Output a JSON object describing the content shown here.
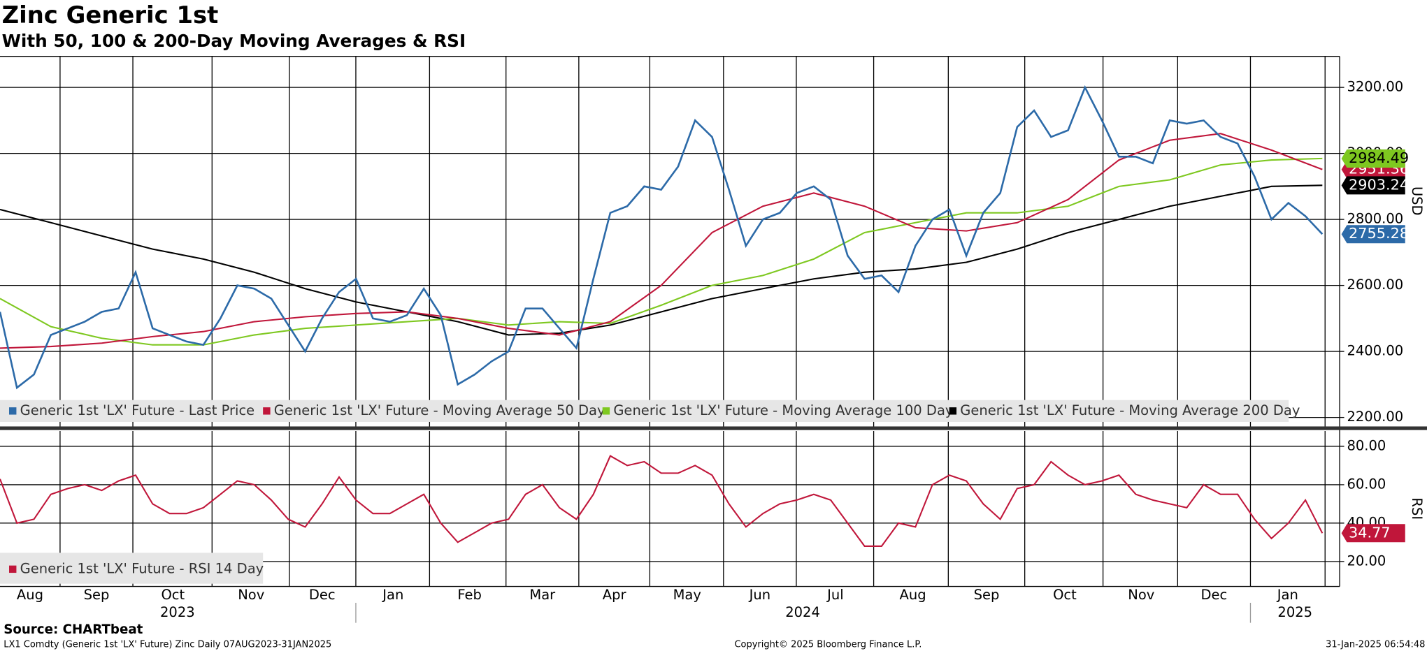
{
  "title": "Zinc Generic 1st",
  "subtitle": "With 50, 100 & 200-Day Moving Averages & RSI",
  "source": "Source: CHARTbeat",
  "footer": {
    "left": "LX1 Comdty (Generic 1st 'LX' Future) Zinc  Daily 07AUG2023-31JAN2025",
    "center": "Copyright© 2025 Bloomberg Finance L.P.",
    "right": "31-Jan-2025 06:54:48"
  },
  "x_axis": {
    "months": [
      "Aug",
      "Sep",
      "Oct",
      "Nov",
      "Dec",
      "Jan",
      "Feb",
      "Mar",
      "Apr",
      "May",
      "Jun",
      "Jul",
      "Aug",
      "Sep",
      "Oct",
      "Nov",
      "Dec",
      "Jan"
    ],
    "years": [
      "2023",
      "2024",
      "2025"
    ]
  },
  "chart_data": [
    {
      "type": "line",
      "ylabel": "USD",
      "ylim": [
        2170,
        3294
      ],
      "yticks": [
        {
          "value": 2200,
          "label": "2200.00"
        },
        {
          "value": 2400,
          "label": "2400.00"
        },
        {
          "value": 2600,
          "label": "2600.00"
        },
        {
          "value": 2800,
          "label": "2800.00"
        },
        {
          "value": 3000,
          "label": "3000.00"
        },
        {
          "value": 3200,
          "label": "3200.00"
        }
      ],
      "grid": true,
      "series": [
        {
          "name": "Generic 1st 'LX' Future - Last Price",
          "color": "#2c6aa8",
          "values": [
            2520,
            2290,
            2330,
            2450,
            2470,
            2490,
            2520,
            2530,
            2640,
            2470,
            2450,
            2430,
            2420,
            2500,
            2600,
            2590,
            2560,
            2480,
            2400,
            2500,
            2580,
            2620,
            2500,
            2490,
            2510,
            2590,
            2510,
            2300,
            2330,
            2370,
            2400,
            2530,
            2530,
            2470,
            2410,
            2620,
            2820,
            2840,
            2900,
            2890,
            2960,
            3100,
            3050,
            2890,
            2720,
            2800,
            2820,
            2880,
            2900,
            2860,
            2690,
            2620,
            2630,
            2580,
            2720,
            2800,
            2830,
            2690,
            2820,
            2880,
            3080,
            3130,
            3050,
            3070,
            3200,
            3100,
            2990,
            2990,
            2970,
            3100,
            3090,
            3100,
            3050,
            3030,
            2930,
            2800,
            2850,
            2810,
            2755.28
          ]
        },
        {
          "name": "Generic 1st 'LX' Future - Moving Average 50 Day",
          "color": "#c0163a",
          "values": [
            2410,
            2415,
            2425,
            2445,
            2460,
            2490,
            2505,
            2515,
            2520,
            2500,
            2470,
            2450,
            2490,
            2600,
            2760,
            2840,
            2880,
            2840,
            2775,
            2765,
            2790,
            2860,
            2980,
            3040,
            3060,
            3010,
            2951.36
          ]
        },
        {
          "name": "Generic 1st 'LX' Future - Moving Average 100 Day",
          "color": "#7ec820",
          "values": [
            2560,
            2475,
            2440,
            2420,
            2420,
            2450,
            2470,
            2480,
            2490,
            2500,
            2480,
            2490,
            2485,
            2540,
            2600,
            2630,
            2680,
            2760,
            2790,
            2820,
            2820,
            2840,
            2900,
            2920,
            2965,
            2980,
            2984.49
          ]
        },
        {
          "name": "Generic 1st 'LX' Future - Moving Average 200 Day",
          "color": "#000000",
          "values": [
            2830,
            2790,
            2750,
            2710,
            2680,
            2640,
            2590,
            2550,
            2520,
            2490,
            2450,
            2455,
            2480,
            2520,
            2560,
            2590,
            2620,
            2640,
            2650,
            2670,
            2710,
            2760,
            2800,
            2840,
            2870,
            2900,
            2903.24
          ]
        }
      ]
    },
    {
      "type": "line",
      "ylabel": "RSI",
      "ylim": [
        7,
        88
      ],
      "yticks": [
        {
          "value": 20,
          "label": "20.00"
        },
        {
          "value": 40,
          "label": "40.00"
        },
        {
          "value": 60,
          "label": "60.00"
        },
        {
          "value": 80,
          "label": "80.00"
        }
      ],
      "grid": true,
      "series": [
        {
          "name": "Generic 1st 'LX' Future - RSI 14 Day",
          "color": "#c0163a",
          "values": [
            63,
            40,
            42,
            55,
            58,
            60,
            57,
            62,
            65,
            50,
            45,
            45,
            48,
            55,
            62,
            60,
            52,
            42,
            38,
            50,
            64,
            52,
            45,
            45,
            50,
            55,
            40,
            30,
            35,
            40,
            42,
            55,
            60,
            48,
            42,
            55,
            75,
            70,
            72,
            66,
            66,
            70,
            65,
            50,
            38,
            45,
            50,
            52,
            55,
            52,
            40,
            28,
            28,
            40,
            38,
            60,
            65,
            62,
            50,
            42,
            58,
            60,
            72,
            65,
            60,
            62,
            65,
            55,
            52,
            50,
            48,
            60,
            55,
            55,
            42,
            32,
            40,
            52,
            34.77
          ]
        }
      ]
    }
  ]
}
